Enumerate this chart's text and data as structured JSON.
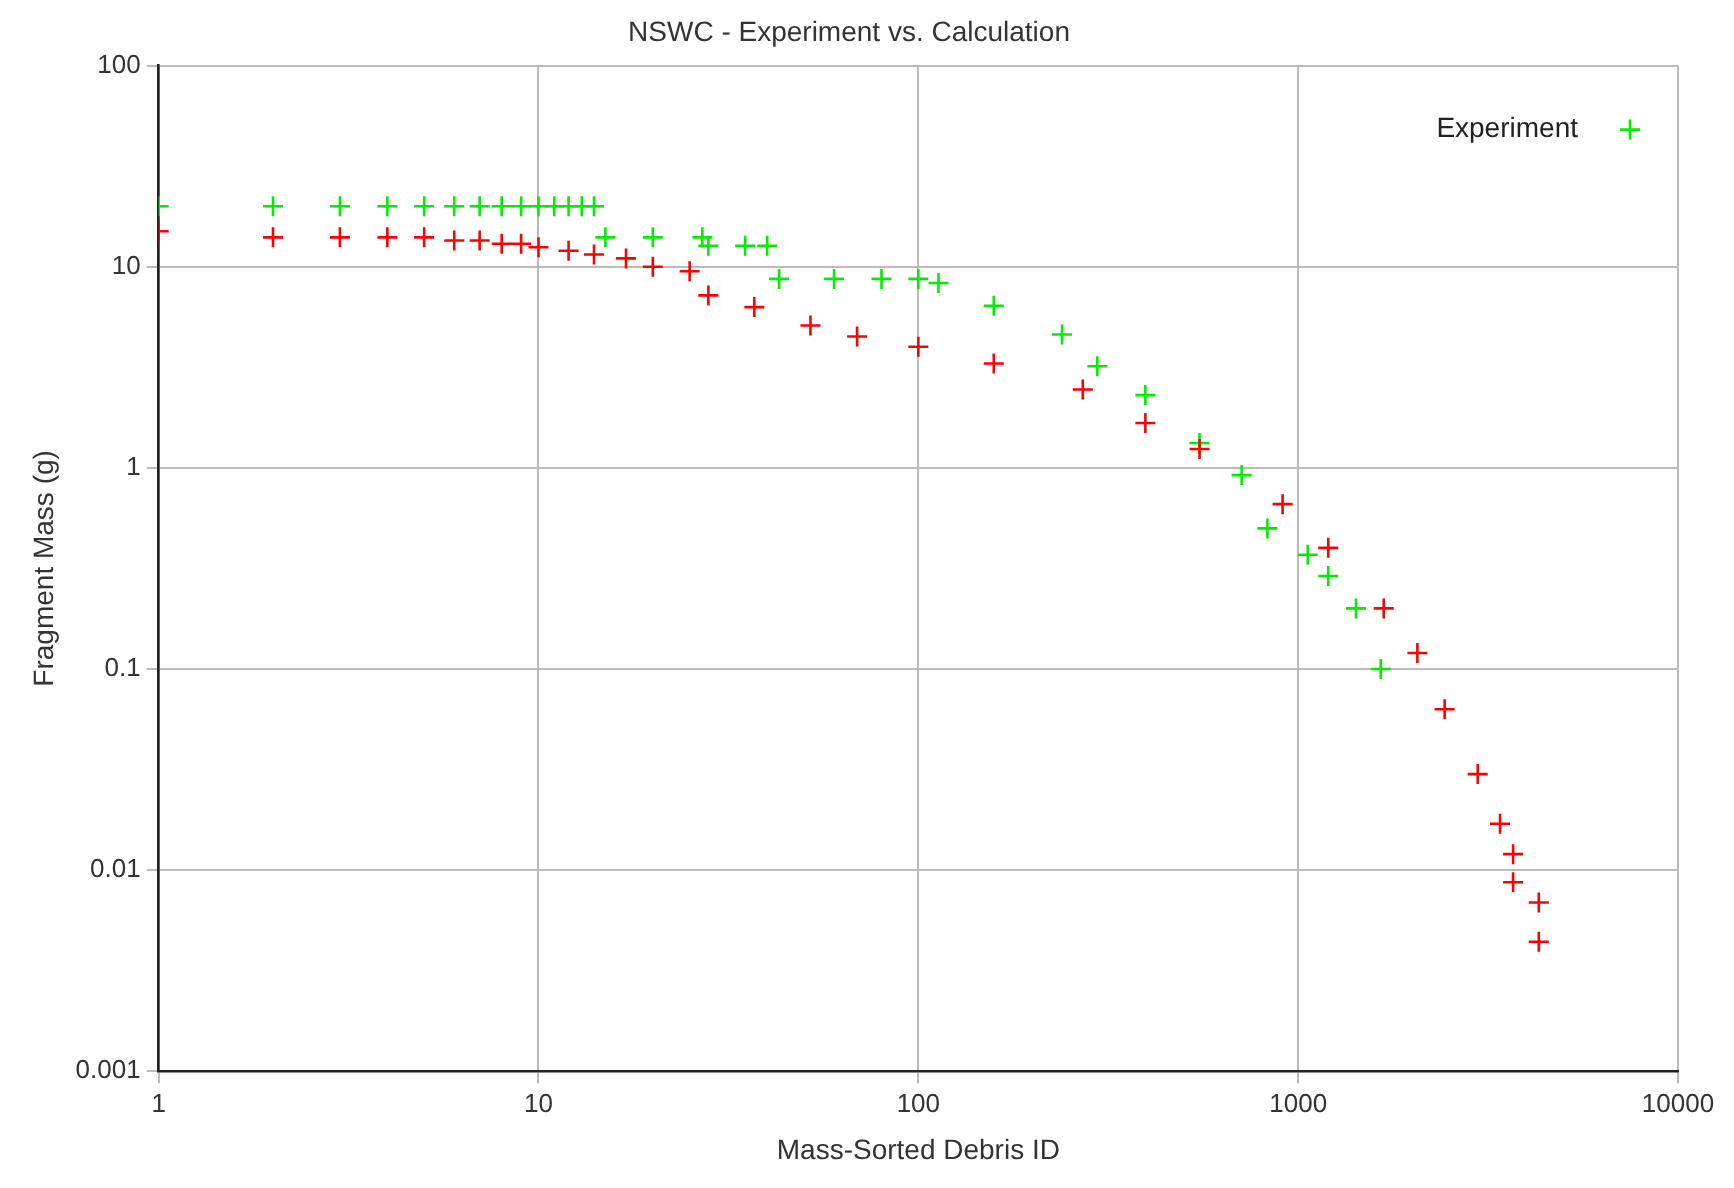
{
  "chart_data": {
    "type": "scatter",
    "title": "NSWC - Experiment vs. Calculation",
    "xlabel": "Mass-Sorted Debris ID",
    "ylabel": "Fragment Mass (g)",
    "log": "xy",
    "xlim": [
      1,
      10000
    ],
    "xticks": [
      1,
      10,
      100,
      1000,
      10000
    ],
    "ylim": [
      0.001,
      100
    ],
    "yticks": [
      0.001,
      0.01,
      0.1,
      1,
      10,
      100
    ],
    "grid": true,
    "legend": "top right",
    "marker": "cross",
    "series": [
      {
        "color": "#ff0000",
        "x": [
          1,
          2,
          3,
          4,
          5,
          6,
          7,
          8,
          9,
          10,
          12,
          14,
          17,
          20,
          25,
          28,
          37,
          52,
          69,
          100,
          158,
          271,
          396,
          550,
          910,
          1200,
          1680,
          2060,
          2430,
          2970,
          3400,
          3680,
          3680,
          4300,
          4300
        ],
        "values": [
          15,
          14,
          14,
          14,
          14,
          13.5,
          13.5,
          13,
          13,
          12.5,
          12,
          11.5,
          11,
          10,
          9.5,
          7.2,
          6.3,
          5.1,
          4.5,
          4,
          3.3,
          2.45,
          1.67,
          1.24,
          0.66,
          0.4,
          0.2,
          0.12,
          0.063,
          0.03,
          0.017,
          0.012,
          0.0087,
          0.0069,
          0.0044
        ]
      },
      {
        "name": "Experiment",
        "color": "#00ee00",
        "x": [
          1,
          2,
          3,
          4,
          5,
          6,
          7,
          8,
          9,
          10,
          11,
          12,
          13,
          14,
          15,
          20,
          27,
          28,
          35,
          40,
          43,
          60,
          80,
          100,
          113,
          158,
          239,
          296,
          396,
          550,
          710,
          830,
          1060,
          1200,
          1420,
          1650
        ],
        "values": [
          20,
          20,
          20,
          20,
          20,
          20,
          20,
          20,
          20,
          20,
          20,
          20,
          20,
          20,
          14,
          14,
          14,
          12.7,
          12.7,
          12.7,
          8.7,
          8.7,
          8.7,
          8.7,
          8.3,
          6.4,
          4.6,
          3.2,
          2.3,
          1.33,
          0.92,
          0.5,
          0.37,
          0.29,
          0.2,
          0.1
        ]
      }
    ]
  }
}
